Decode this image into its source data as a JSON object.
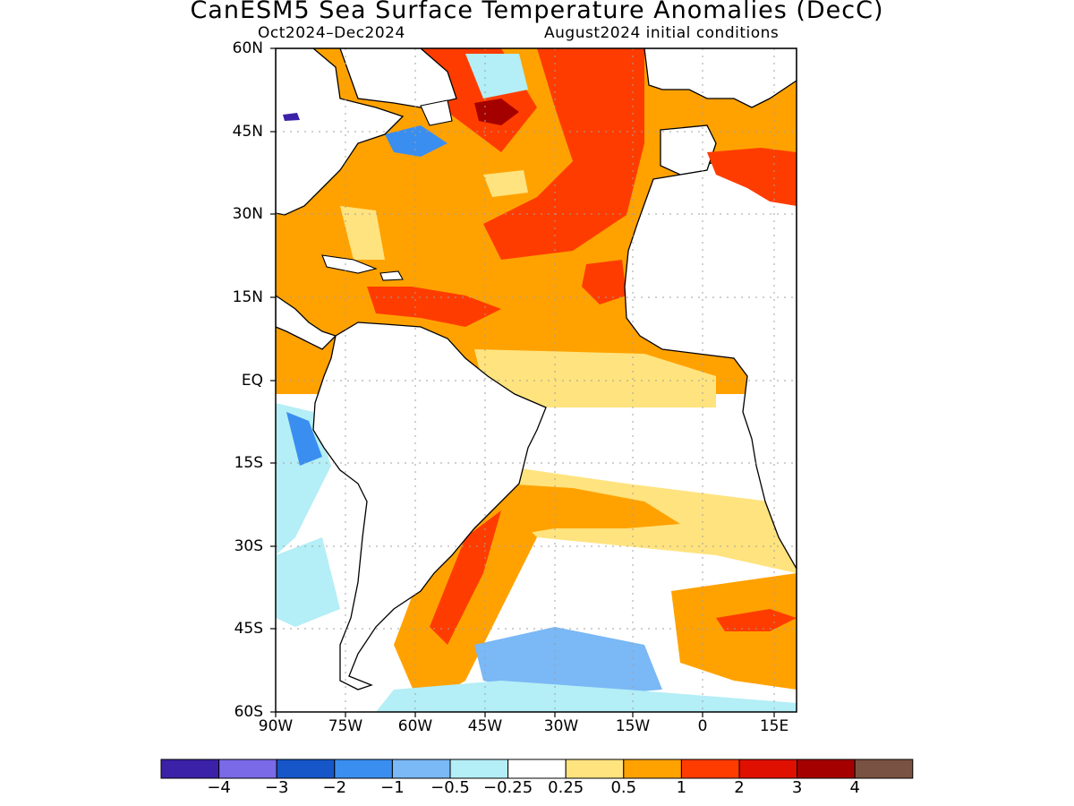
{
  "title": "CanESM5 Sea Surface Temperature Anomalies (DecC)",
  "period": "Oct2024–Dec2024",
  "init": "August2024 initial conditions",
  "lat_labels": [
    "60N",
    "45N",
    "30N",
    "15N",
    "EQ",
    "15S",
    "30S",
    "45S",
    "60S"
  ],
  "lon_labels": [
    "90W",
    "75W",
    "60W",
    "45W",
    "30W",
    "15W",
    "0",
    "15E"
  ],
  "colorbar": {
    "colors": [
      "#3b21a8",
      "#7b6ae8",
      "#1656c8",
      "#3a8ef0",
      "#7ab8f6",
      "#b4eef6",
      "#ffffff",
      "#ffe37e",
      "#ffa200",
      "#ff3c00",
      "#e01000",
      "#a50000",
      "#7a5243"
    ],
    "labels": [
      "−4",
      "−3",
      "−2",
      "−1",
      "−0.5",
      "−0.25",
      "0.25",
      "0.5",
      "1",
      "2",
      "3",
      "4"
    ]
  },
  "colors": {
    "land": "#ffffff",
    "coast": "#000000",
    "grid": "#a0a0a0"
  }
}
